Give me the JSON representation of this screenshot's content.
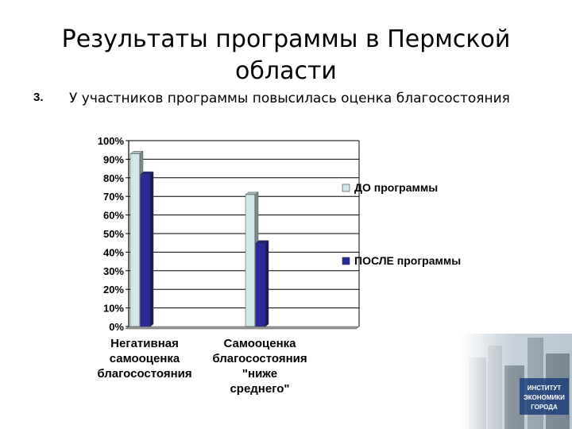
{
  "slide": {
    "title_line1": "Результаты программы в Пермской",
    "title_line2": "области",
    "point_number": "3.",
    "point_text": "У участников программы повысилась оценка благосостояния"
  },
  "chart_data": {
    "type": "bar",
    "categories": [
      [
        "Негативная",
        "самооценка",
        "благосостояния"
      ],
      [
        "Самооценка",
        "благосостояния",
        "\"ниже",
        "среднего\""
      ]
    ],
    "series": [
      {
        "name": "ДО программы",
        "values": [
          93,
          71
        ],
        "color": "#cfe8ea"
      },
      {
        "name": "ПОСЛЕ программы",
        "values": [
          82,
          45
        ],
        "color": "#2a2a9a"
      }
    ],
    "yticks": [
      "0%",
      "10%",
      "20%",
      "30%",
      "40%",
      "50%",
      "60%",
      "70%",
      "80%",
      "90%",
      "100%"
    ],
    "ylim": [
      0,
      100
    ],
    "grid": true,
    "legend": "right",
    "title": "",
    "xlabel": "",
    "ylabel": ""
  },
  "logo": {
    "icon": "city-institute-logo",
    "lines": [
      "ИНСТИТУТ",
      "ЭКОНОМИКИ",
      "ГОРОДА"
    ]
  }
}
